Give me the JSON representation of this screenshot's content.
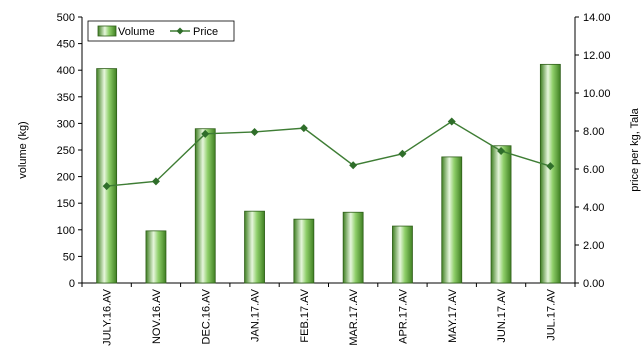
{
  "chart_data": {
    "type": "bar",
    "categories": [
      "JULY.16.AV",
      "NOV.16.AV",
      "DEC.16.AV",
      "JAN.17.AV",
      "FEB.17.AV",
      "MAR.17.AV",
      "APR.17.AV",
      "MAY.17.AV",
      "JUN.17.AV",
      "JUL.17.AV"
    ],
    "series": [
      {
        "name": "Volume",
        "type": "bar",
        "axis": "left",
        "values": [
          403,
          98,
          290,
          135,
          120,
          133,
          107,
          237,
          258,
          411
        ]
      },
      {
        "name": "Price",
        "type": "line",
        "axis": "right",
        "values": [
          5.1,
          5.35,
          7.85,
          7.95,
          8.15,
          6.2,
          6.8,
          8.5,
          6.95,
          6.15
        ]
      }
    ],
    "ylabel": "volume (kg)",
    "y2label": "price per kg, Tala",
    "ylim": [
      0,
      500
    ],
    "y2lim": [
      0,
      14
    ],
    "y_ticks": [
      "0",
      "50",
      "100",
      "150",
      "200",
      "250",
      "300",
      "350",
      "400",
      "450",
      "500"
    ],
    "y2_ticks": [
      "0.00",
      "2.00",
      "4.00",
      "6.00",
      "8.00",
      "10.00",
      "12.00",
      "14.00"
    ],
    "legend_position": "top-left",
    "grid": false,
    "colors": {
      "bar_fill": "#8fcf6a",
      "bar_light": "#e6f6dc",
      "bar_dark": "#3f7f22",
      "line": "#3e7d34"
    }
  }
}
